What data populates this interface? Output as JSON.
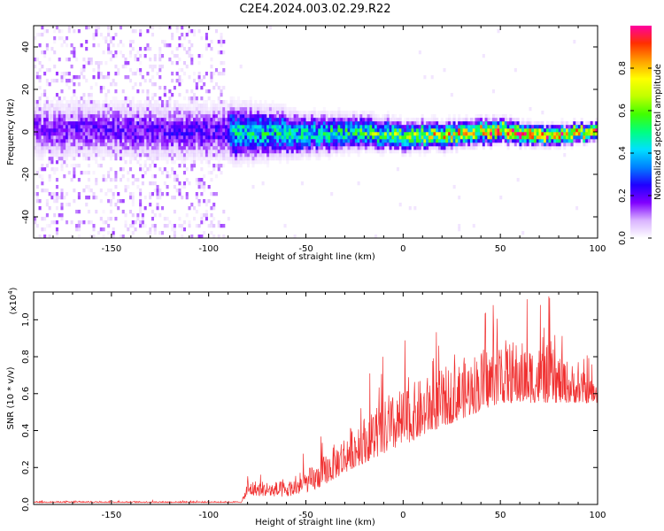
{
  "title": "C2E4.2024.003.02.29.R22",
  "chart_data": [
    {
      "type": "heatmap",
      "xlabel": "Height of straight line (km)",
      "ylabel": "Frequency (Hz)",
      "xlim": [
        -190,
        100
      ],
      "ylim": [
        -50,
        50
      ],
      "x_ticks": [
        -150,
        -100,
        -50,
        0,
        50,
        100
      ],
      "y_ticks": [
        -40,
        -20,
        0,
        20,
        40
      ],
      "colorbar": {
        "label": "Normalized spectral amplitude",
        "range": [
          0,
          1
        ],
        "ticks": [
          "0.0",
          "0.2",
          "0.4",
          "0.6",
          "0.8"
        ],
        "stops": [
          "#ffffff",
          "#d9b3ff",
          "#8000ff",
          "#2000ff",
          "#0080ff",
          "#00e0ff",
          "#00ff80",
          "#40ff00",
          "#c0ff00",
          "#ffff00",
          "#ffa000",
          "#ff3000",
          "#ff00a0"
        ]
      },
      "band": {
        "center_hz": [
          {
            "x": -190,
            "f": 1
          },
          {
            "x": -150,
            "f": 1
          },
          {
            "x": -90,
            "f": 0
          },
          {
            "x": -50,
            "f": -1
          },
          {
            "x": -20,
            "f": 0
          },
          {
            "x": 0,
            "f": -2
          },
          {
            "x": 20,
            "f": -2
          },
          {
            "x": 50,
            "f": 1
          },
          {
            "x": 70,
            "f": -2
          },
          {
            "x": 100,
            "f": 0
          }
        ],
        "halfwidth_hz": [
          {
            "x": -190,
            "w": 10
          },
          {
            "x": -90,
            "w": 10
          },
          {
            "x": -50,
            "w": 7
          },
          {
            "x": 0,
            "w": 5
          },
          {
            "x": 50,
            "w": 4
          },
          {
            "x": 100,
            "w": 3
          }
        ],
        "peak_amplitude": [
          {
            "x": -190,
            "a": 0.18
          },
          {
            "x": -90,
            "a": 0.22
          },
          {
            "x": -89,
            "a": 0.45
          },
          {
            "x": -30,
            "a": 0.5
          },
          {
            "x": 0,
            "a": 0.65
          },
          {
            "x": 30,
            "a": 0.8
          },
          {
            "x": 60,
            "a": 0.9
          },
          {
            "x": 100,
            "a": 0.85
          }
        ],
        "noise_region_x": [
          -190,
          -92
        ]
      }
    },
    {
      "type": "line",
      "xlabel": "Height of straight line (km)",
      "ylabel": "SNR (10 * v/v)",
      "multiplier": "(x10^4)",
      "xlim": [
        -190,
        100
      ],
      "ylim": [
        0,
        1.15
      ],
      "x_ticks": [
        -150,
        -100,
        -50,
        0,
        50,
        100
      ],
      "y_ticks": [
        "0.0",
        "0.2",
        "0.4",
        "0.6",
        "0.8",
        "1.0"
      ],
      "color": "#f03030",
      "envelope": [
        {
          "x": -190,
          "base": 0.01,
          "spread": 0.01
        },
        {
          "x": -83,
          "base": 0.01,
          "spread": 0.01
        },
        {
          "x": -80,
          "base": 0.05,
          "spread": 0.12
        },
        {
          "x": -60,
          "base": 0.04,
          "spread": 0.12
        },
        {
          "x": -45,
          "base": 0.08,
          "spread": 0.2
        },
        {
          "x": -25,
          "base": 0.2,
          "spread": 0.35
        },
        {
          "x": 0,
          "base": 0.32,
          "spread": 0.45
        },
        {
          "x": 20,
          "base": 0.42,
          "spread": 0.45
        },
        {
          "x": 50,
          "base": 0.55,
          "spread": 0.5
        },
        {
          "x": 75,
          "base": 0.55,
          "spread": 0.45
        },
        {
          "x": 100,
          "base": 0.55,
          "spread": 0.15
        }
      ]
    }
  ]
}
